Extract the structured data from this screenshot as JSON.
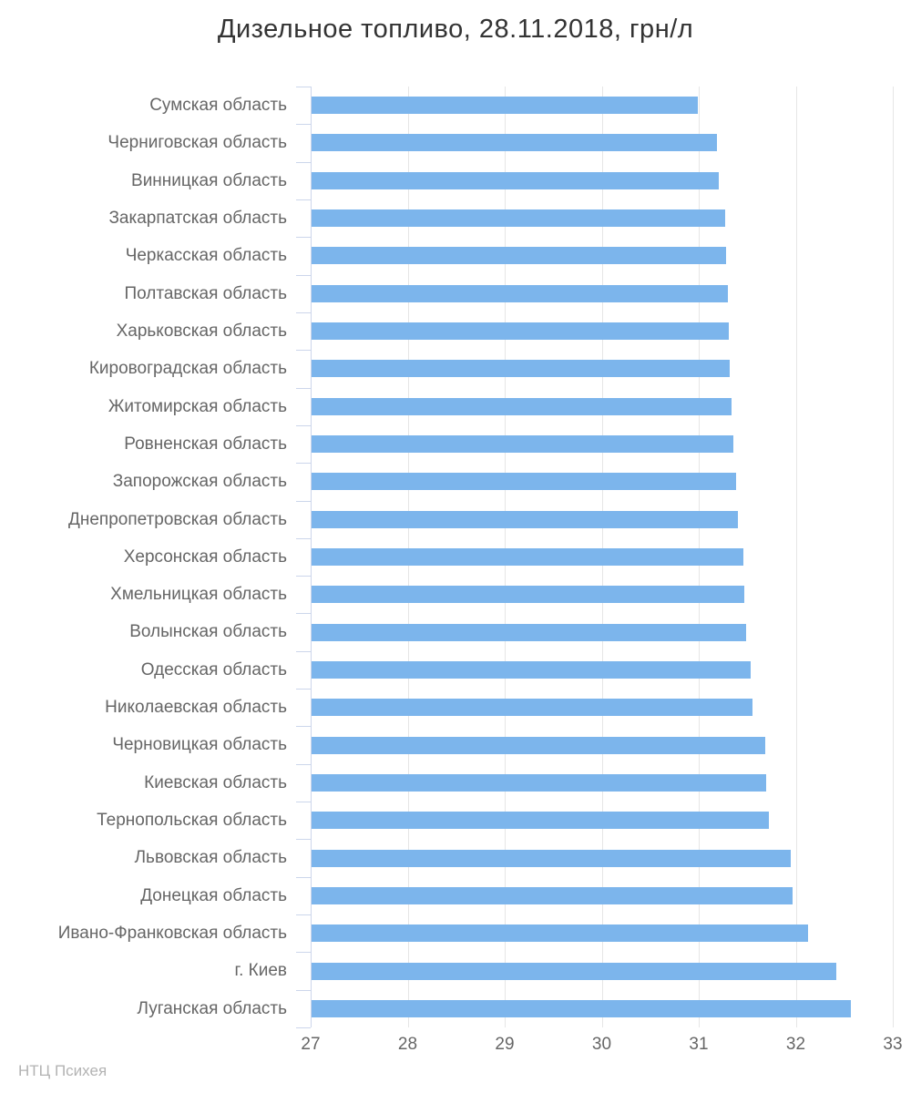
{
  "chart_data": {
    "type": "bar",
    "orientation": "horizontal",
    "title": "Дизельное топливо, 28.11.2018, грн/л",
    "xlabel": "",
    "ylabel": "",
    "xlim": [
      27,
      33
    ],
    "x_ticks": [
      27,
      28,
      29,
      30,
      31,
      32,
      33
    ],
    "grid": true,
    "legend": "none",
    "source_watermark": "НТЦ Психея",
    "categories": [
      "Сумская область",
      "Черниговская область",
      "Винницкая область",
      "Закарпатская область",
      "Черкасская область",
      "Полтавская область",
      "Харьковская область",
      "Кировоградская область",
      "Житомирская область",
      "Ровненская область",
      "Запорожская область",
      "Днепропетровская область",
      "Херсонская область",
      "Хмельницкая область",
      "Волынская область",
      "Одесская область",
      "Николаевская область",
      "Черновицкая область",
      "Киевская область",
      "Тернопольская область",
      "Львовская область",
      "Донецкая область",
      "Ивано-Франковская область",
      "г. Киев",
      "Луганская область"
    ],
    "values": [
      30.98,
      31.18,
      31.2,
      31.26,
      31.27,
      31.29,
      31.3,
      31.31,
      31.33,
      31.35,
      31.38,
      31.39,
      31.45,
      31.46,
      31.48,
      31.53,
      31.54,
      31.68,
      31.69,
      31.71,
      31.94,
      31.96,
      32.12,
      32.41,
      32.56
    ],
    "colors": {
      "bar": "#7cb5ec",
      "title_text": "#333333",
      "axis_labels": "#666666",
      "axis_line": "#ccd6eb",
      "gridline": "#e6e6e6",
      "watermark": "#b3b3b3",
      "background": "#ffffff"
    }
  }
}
